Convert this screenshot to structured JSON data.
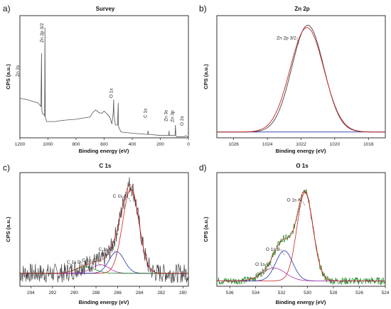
{
  "chart_data": [
    {
      "panel": "a)",
      "type": "line",
      "title": "Survey",
      "xlabel": "Binding energy (eV)",
      "ylabel": "CPS (a.u.)",
      "xlim": [
        1200,
        0
      ],
      "reversed_x": true,
      "xticks": [
        1200,
        1000,
        800,
        600,
        400,
        200,
        0
      ],
      "series": [
        {
          "color": "#555555",
          "x": [
            1200,
            1150,
            1100,
            1070,
            1050,
            1046,
            1044,
            1040,
            1030,
            1024,
            1022,
            1019,
            1010,
            950,
            900,
            800,
            700,
            680,
            660,
            640,
            620,
            600,
            575,
            560,
            545,
            535,
            532,
            530,
            520,
            505,
            500,
            498,
            495,
            480,
            400,
            300,
            290,
            287,
            284,
            280,
            200,
            150,
            140,
            137,
            135,
            120,
            95,
            92,
            89,
            85,
            60,
            25,
            20,
            10,
            0
          ],
          "y": [
            0.34,
            0.33,
            0.31,
            0.3,
            0.27,
            0.73,
            0.24,
            0.21,
            0.2,
            0.19,
            0.95,
            0.18,
            0.14,
            0.14,
            0.15,
            0.16,
            0.18,
            0.22,
            0.24,
            0.22,
            0.21,
            0.23,
            0.2,
            0.18,
            0.12,
            0.22,
            0.33,
            0.2,
            0.11,
            0.11,
            0.3,
            0.1,
            0.09,
            0.05,
            0.04,
            0.03,
            0.03,
            0.06,
            0.03,
            0.03,
            0.02,
            0.02,
            0.02,
            0.06,
            0.02,
            0.02,
            0.02,
            0.11,
            0.02,
            0.01,
            0.01,
            0.01,
            0.02,
            0.01,
            0.01
          ]
        }
      ],
      "annotations": [
        {
          "text": "Zn 2s",
          "x": 1195
        },
        {
          "text": "Zn 2p 3/2",
          "x": 1024
        },
        {
          "text": "O 1s",
          "x": 530
        },
        {
          "text": "C 1s",
          "x": 287
        },
        {
          "text": "Zn 3s",
          "x": 140
        },
        {
          "text": "Zn 3p",
          "x": 93
        },
        {
          "text": "O 2s",
          "x": 25
        }
      ]
    },
    {
      "panel": "b)",
      "type": "line",
      "title": "Zn 2p",
      "xlabel": "Binding energy (eV)",
      "ylabel": "CPS (a.u.)",
      "xlim": [
        1027,
        1017
      ],
      "reversed_x": true,
      "xticks": [
        1026,
        1024,
        1022,
        1020,
        1018
      ],
      "series": [
        {
          "role": "raw",
          "color": "#444444",
          "peaks": [
            {
              "center": 1021.6,
              "amp": 0.92,
              "width": 0.95
            }
          ],
          "baseline": 0.05
        },
        {
          "role": "fit",
          "color": "#cc2222",
          "peaks": [
            {
              "center": 1021.65,
              "amp": 0.9,
              "width": 1.0
            }
          ],
          "baseline": 0.05
        },
        {
          "role": "background",
          "color": "#2233aa",
          "peaks": [],
          "baseline": 0.05
        }
      ],
      "annotations": [
        {
          "text": "Zn 2p 3/2",
          "x": 1021.7
        }
      ]
    },
    {
      "panel": "c)",
      "type": "line",
      "title": "C 1s",
      "xlabel": "Binding energy (eV)",
      "ylabel": "CPS (a.u.)",
      "xlim": [
        295,
        279.5
      ],
      "reversed_x": true,
      "xticks": [
        294,
        292,
        290,
        288,
        286,
        284,
        282,
        280
      ],
      "series": [
        {
          "role": "raw",
          "color": "#444444",
          "noisy": true
        },
        {
          "role": "fit",
          "color": "#cc2222"
        },
        {
          "role": "component",
          "name": "C 1s A",
          "color": "#cc2222",
          "center": 284.8,
          "amp": 0.78,
          "width": 0.75
        },
        {
          "role": "component",
          "name": "C 1s B",
          "color": "#2233aa",
          "center": 286.1,
          "amp": 0.2,
          "width": 0.7
        },
        {
          "role": "component",
          "name": "C 1s C",
          "color": "#aa33aa",
          "center": 287.6,
          "amp": 0.08,
          "width": 0.8
        },
        {
          "role": "component",
          "name": "C 1s D",
          "color": "#228822",
          "center": 289.0,
          "amp": 0.06,
          "width": 0.9
        }
      ],
      "baseline": 0.12,
      "annotations": [
        {
          "text": "C 1s A",
          "x": 284.9
        },
        {
          "text": "C 1s B",
          "x": 286.0
        },
        {
          "text": "C 1s C",
          "x": 287.2
        },
        {
          "text": "C 1s D",
          "x": 288.6
        }
      ]
    },
    {
      "panel": "d)",
      "type": "line",
      "title": "O 1s",
      "xlabel": "Binding energy (eV)",
      "ylabel": "CPS (a.u.)",
      "xlim": [
        537,
        524
      ],
      "reversed_x": true,
      "xticks": [
        536,
        534,
        532,
        530,
        528,
        526,
        524
      ],
      "series": [
        {
          "role": "raw",
          "color": "#228822",
          "noisy": true
        },
        {
          "role": "fit",
          "color": "#cc2222"
        },
        {
          "role": "component",
          "name": "O 1s A",
          "color": "#cc2222",
          "center": 530.2,
          "amp": 0.82,
          "width": 0.62
        },
        {
          "role": "component",
          "name": "O 1s B",
          "color": "#2233aa",
          "center": 531.8,
          "amp": 0.28,
          "width": 0.65
        },
        {
          "role": "component",
          "name": "O 1s C",
          "color": "#aa33aa",
          "center": 532.6,
          "amp": 0.12,
          "width": 0.9
        }
      ],
      "baseline": 0.05,
      "annotations": [
        {
          "text": "O 1s A",
          "x": 530.3
        },
        {
          "text": "O 1s B",
          "x": 531.8
        },
        {
          "text": "O 1s C",
          "x": 532.7
        }
      ]
    }
  ]
}
